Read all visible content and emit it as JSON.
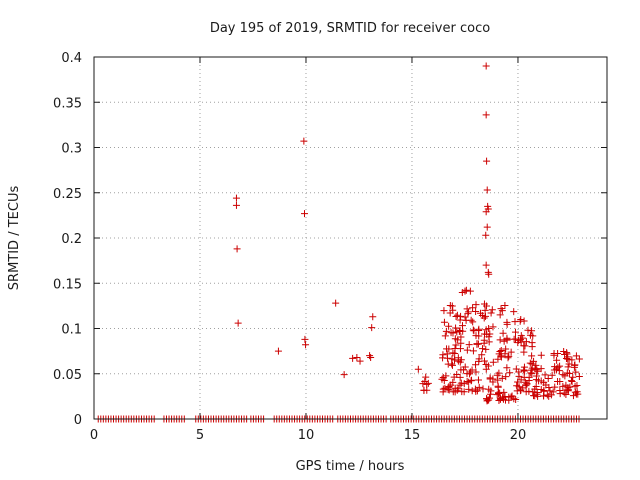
{
  "chart_data": {
    "type": "scatter",
    "title": "Day 195 of 2019, SRMTID for receiver coco",
    "xlabel": "GPS time / hours",
    "ylabel": "SRMTID / TECUs",
    "xlim": [
      0,
      24.2
    ],
    "ylim": [
      0,
      0.4
    ],
    "xticks": [
      0,
      5,
      10,
      15,
      20
    ],
    "yticks": [
      0,
      0.05,
      0.1,
      0.15,
      0.2,
      0.25,
      0.3,
      0.35,
      0.4
    ],
    "xtick_labels": [
      "0",
      "5",
      "10",
      "15",
      "20"
    ],
    "ytick_labels": [
      "0",
      "0.05",
      "0.1",
      "0.15",
      "0.2",
      "0.25",
      "0.3",
      "0.35",
      "0.4"
    ],
    "grid": true,
    "marker": "+",
    "marker_color": "#cc0000",
    "grid_color": "#a0a0a0",
    "series": [
      {
        "name": "SRMTID",
        "zero_x_ranges": [
          [
            0.2,
            2.9
          ],
          [
            3.3,
            4.3
          ],
          [
            4.8,
            7.2
          ],
          [
            7.4,
            8.1
          ],
          [
            8.5,
            11.3
          ],
          [
            11.5,
            13.8
          ],
          [
            14.0,
            22.9
          ]
        ],
        "zero_step": 0.12,
        "x": [
          6.72,
          6.72,
          6.75,
          6.8,
          8.7,
          9.9,
          9.93,
          9.95,
          9.98,
          11.4,
          11.8,
          12.2,
          12.4,
          12.55,
          13.0,
          13.05,
          13.1,
          13.15,
          15.3,
          18.5,
          18.5,
          18.52,
          18.55,
          18.5,
          18.57,
          18.6,
          18.55,
          18.48,
          18.5,
          18.6,
          18.62,
          18.45
        ],
        "y": [
          0.244,
          0.236,
          0.188,
          0.106,
          0.075,
          0.307,
          0.227,
          0.088,
          0.082,
          0.128,
          0.049,
          0.067,
          0.068,
          0.064,
          0.07,
          0.068,
          0.101,
          0.113,
          0.055,
          0.39,
          0.336,
          0.285,
          0.253,
          0.229,
          0.235,
          0.232,
          0.212,
          0.203,
          0.17,
          0.162,
          0.16,
          0.12
        ],
        "clusters": [
          {
            "x_range": [
              15.5,
              15.8
            ],
            "y_range": [
              0.03,
              0.05
            ],
            "count": 8
          },
          {
            "x_range": [
              16.4,
              18.4
            ],
            "y_range": [
              0.03,
              0.13
            ],
            "count": 120
          },
          {
            "x_range": [
              17.3,
              17.8
            ],
            "y_range": [
              0.13,
              0.145
            ],
            "count": 4
          },
          {
            "x_range": [
              18.4,
              19.9
            ],
            "y_range": [
              0.02,
              0.13
            ],
            "count": 90
          },
          {
            "x_range": [
              19.9,
              20.7
            ],
            "y_range": [
              0.03,
              0.11
            ],
            "count": 50
          },
          {
            "x_range": [
              20.7,
              22.9
            ],
            "y_range": [
              0.025,
              0.075
            ],
            "count": 90
          }
        ]
      }
    ]
  }
}
